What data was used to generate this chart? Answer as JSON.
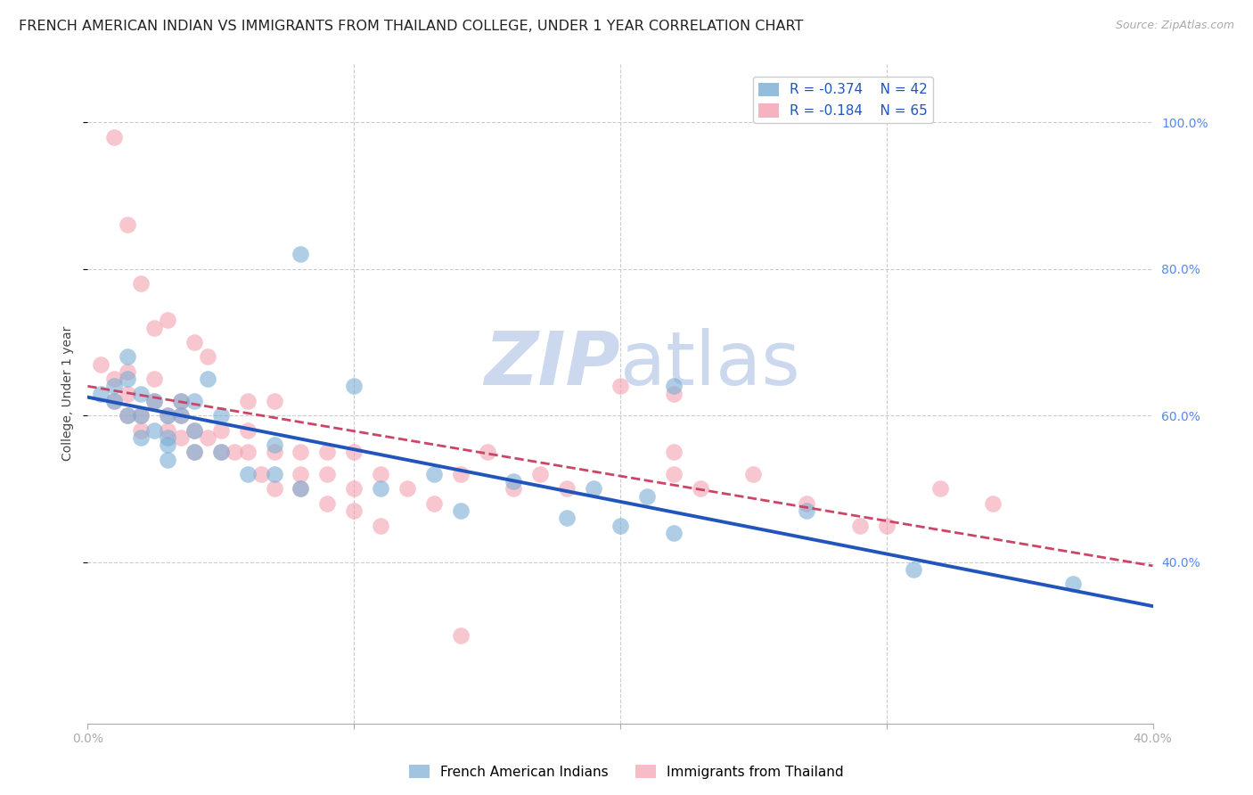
{
  "title": "FRENCH AMERICAN INDIAN VS IMMIGRANTS FROM THAILAND COLLEGE, UNDER 1 YEAR CORRELATION CHART",
  "source": "Source: ZipAtlas.com",
  "ylabel": "College, Under 1 year",
  "xlim": [
    0.0,
    0.4
  ],
  "ylim": [
    0.18,
    1.08
  ],
  "ylim_display": [
    0.0,
    1.05
  ],
  "legend_r1": "R = -0.374",
  "legend_n1": "N = 42",
  "legend_r2": "R = -0.184",
  "legend_n2": "N = 65",
  "blue_color": "#7aadd4",
  "pink_color": "#f4a0b0",
  "blue_line_color": "#2255bb",
  "pink_line_color": "#cc4466",
  "watermark_zip": "ZIP",
  "watermark_atlas": "atlas",
  "blue_points_x": [
    0.005,
    0.01,
    0.01,
    0.015,
    0.015,
    0.015,
    0.02,
    0.02,
    0.02,
    0.025,
    0.025,
    0.03,
    0.03,
    0.03,
    0.03,
    0.035,
    0.035,
    0.04,
    0.04,
    0.04,
    0.045,
    0.05,
    0.05,
    0.06,
    0.07,
    0.07,
    0.08,
    0.08,
    0.1,
    0.11,
    0.13,
    0.14,
    0.16,
    0.18,
    0.19,
    0.2,
    0.22,
    0.27,
    0.31,
    0.37,
    0.21,
    0.22
  ],
  "blue_points_y": [
    0.63,
    0.62,
    0.64,
    0.6,
    0.65,
    0.68,
    0.57,
    0.6,
    0.63,
    0.58,
    0.62,
    0.56,
    0.6,
    0.57,
    0.54,
    0.62,
    0.6,
    0.55,
    0.58,
    0.62,
    0.65,
    0.55,
    0.6,
    0.52,
    0.52,
    0.56,
    0.5,
    0.82,
    0.64,
    0.5,
    0.52,
    0.47,
    0.51,
    0.46,
    0.5,
    0.45,
    0.64,
    0.47,
    0.39,
    0.37,
    0.49,
    0.44
  ],
  "pink_points_x": [
    0.005,
    0.01,
    0.01,
    0.015,
    0.015,
    0.015,
    0.02,
    0.02,
    0.025,
    0.025,
    0.03,
    0.03,
    0.035,
    0.035,
    0.04,
    0.04,
    0.045,
    0.05,
    0.05,
    0.055,
    0.06,
    0.06,
    0.065,
    0.07,
    0.07,
    0.08,
    0.08,
    0.09,
    0.09,
    0.1,
    0.1,
    0.11,
    0.12,
    0.13,
    0.14,
    0.15,
    0.16,
    0.17,
    0.18,
    0.2,
    0.22,
    0.22,
    0.23,
    0.25,
    0.27,
    0.29,
    0.3,
    0.32,
    0.34,
    0.01,
    0.015,
    0.02,
    0.025,
    0.03,
    0.035,
    0.04,
    0.045,
    0.06,
    0.07,
    0.08,
    0.09,
    0.1,
    0.11,
    0.14,
    0.22
  ],
  "pink_points_y": [
    0.67,
    0.62,
    0.65,
    0.6,
    0.63,
    0.66,
    0.58,
    0.6,
    0.62,
    0.65,
    0.58,
    0.6,
    0.57,
    0.6,
    0.55,
    0.58,
    0.57,
    0.55,
    0.58,
    0.55,
    0.55,
    0.58,
    0.52,
    0.5,
    0.55,
    0.52,
    0.55,
    0.52,
    0.55,
    0.5,
    0.55,
    0.52,
    0.5,
    0.48,
    0.52,
    0.55,
    0.5,
    0.52,
    0.5,
    0.64,
    0.55,
    0.52,
    0.5,
    0.52,
    0.48,
    0.45,
    0.45,
    0.5,
    0.48,
    0.98,
    0.86,
    0.78,
    0.72,
    0.73,
    0.62,
    0.7,
    0.68,
    0.62,
    0.62,
    0.5,
    0.48,
    0.47,
    0.45,
    0.3,
    0.63
  ],
  "blue_line_x0": 0.0,
  "blue_line_x1": 0.4,
  "blue_line_y0": 0.625,
  "blue_line_y1": 0.34,
  "pink_line_x0": 0.0,
  "pink_line_x1": 0.4,
  "pink_line_y0": 0.64,
  "pink_line_y1": 0.395,
  "grid_color": "#cccccc",
  "background_color": "#ffffff",
  "title_fontsize": 11.5,
  "axis_label_fontsize": 10,
  "tick_fontsize": 10,
  "right_tick_color": "#5588ee",
  "watermark_color": "#ccd8ee"
}
